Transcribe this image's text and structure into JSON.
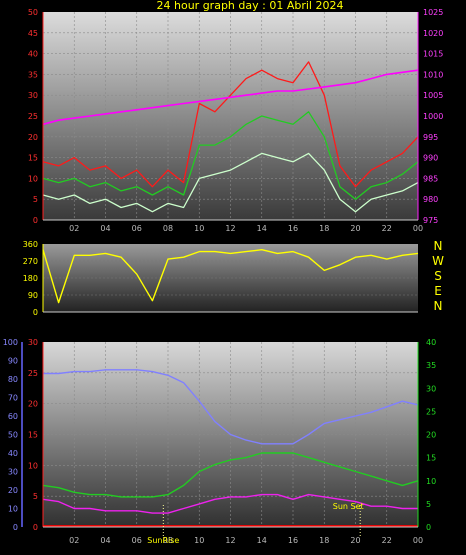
{
  "chart_data": [
    {
      "type": "line",
      "title": "24 hour graph day : 01 Abril 2024",
      "x_ticks": [
        "02",
        "04",
        "06",
        "08",
        "10",
        "12",
        "14",
        "16",
        "18",
        "20",
        "22",
        "00"
      ],
      "y_left_ticks": [
        "0",
        "5",
        "10",
        "15",
        "20",
        "25",
        "30",
        "35",
        "40",
        "45",
        "50"
      ],
      "y_right_ticks": [
        "975",
        "980",
        "985",
        "990",
        "995",
        "1000",
        "1005",
        "1010",
        "1015",
        "1020",
        "1025"
      ],
      "ylim_left": [
        0,
        50
      ],
      "ylim_right": [
        975,
        1025
      ],
      "hours": [
        0,
        1,
        2,
        3,
        4,
        5,
        6,
        7,
        8,
        9,
        10,
        11,
        12,
        13,
        14,
        15,
        16,
        17,
        18,
        19,
        20,
        21,
        22,
        23,
        24
      ],
      "series": [
        {
          "color": "#ff1a1a",
          "axis": "left",
          "values": [
            14,
            13,
            15,
            12,
            13,
            10,
            12,
            8,
            12,
            9,
            28,
            26,
            30,
            34,
            36,
            34,
            33,
            38,
            30,
            13,
            8,
            12,
            14,
            16,
            20
          ]
        },
        {
          "color": "#22cc22",
          "axis": "left",
          "values": [
            10,
            9,
            10,
            8,
            9,
            7,
            8,
            6,
            8,
            6,
            18,
            18,
            20,
            23,
            25,
            24,
            23,
            26,
            20,
            8,
            5,
            8,
            9,
            11,
            14
          ]
        },
        {
          "color": "#ccffcc",
          "axis": "left",
          "values": [
            6,
            5,
            6,
            4,
            5,
            3,
            4,
            2,
            4,
            3,
            10,
            11,
            12,
            14,
            16,
            15,
            14,
            16,
            12,
            5,
            2,
            5,
            6,
            7,
            9
          ]
        },
        {
          "color": "#ff00ff",
          "axis": "right",
          "values": [
            998,
            999,
            999.5,
            1000,
            1000.5,
            1001,
            1001.5,
            1002,
            1002.5,
            1003,
            1003.5,
            1004,
            1004.5,
            1005,
            1005.5,
            1006,
            1006,
            1006.5,
            1007,
            1007.5,
            1008,
            1009,
            1010,
            1010.5,
            1011
          ]
        }
      ]
    },
    {
      "type": "line",
      "y_ticks": [
        "0",
        "90",
        "180",
        "270",
        "360"
      ],
      "ylim": [
        0,
        360
      ],
      "compass_labels": [
        "N",
        "W",
        "S",
        "E",
        "N"
      ],
      "hours": [
        0,
        1,
        2,
        3,
        4,
        5,
        6,
        7,
        8,
        9,
        10,
        11,
        12,
        13,
        14,
        15,
        16,
        17,
        18,
        19,
        20,
        21,
        22,
        23,
        24
      ],
      "series": [
        {
          "color": "#ffff00",
          "values": [
            330,
            50,
            300,
            300,
            310,
            290,
            200,
            60,
            280,
            290,
            320,
            320,
            310,
            320,
            330,
            310,
            320,
            290,
            220,
            250,
            290,
            300,
            280,
            300,
            310
          ]
        }
      ]
    },
    {
      "type": "line",
      "x_ticks": [
        "02",
        "04",
        "06",
        "08",
        "10",
        "12",
        "14",
        "16",
        "18",
        "20",
        "22",
        "00"
      ],
      "y_blue_ticks": [
        "0",
        "10",
        "20",
        "30",
        "40",
        "50",
        "60",
        "70",
        "80",
        "90",
        "100"
      ],
      "y_red_ticks": [
        "0",
        "5",
        "10",
        "15",
        "20",
        "25",
        "30"
      ],
      "y_green_ticks": [
        "0",
        "5",
        "10",
        "15",
        "20",
        "25",
        "30",
        "35",
        "40"
      ],
      "ylim_blue": [
        0,
        100
      ],
      "ylim_red": [
        0,
        30
      ],
      "ylim_green": [
        0,
        40
      ],
      "events": [
        {
          "label": "SunRise",
          "hour": 7.7
        },
        {
          "label": "Sun Set",
          "hour": 20.3
        }
      ],
      "hours": [
        0,
        1,
        2,
        3,
        4,
        5,
        6,
        7,
        8,
        9,
        10,
        11,
        12,
        13,
        14,
        15,
        16,
        17,
        18,
        19,
        20,
        21,
        22,
        23,
        24
      ],
      "series": [
        {
          "color": "#8080ff",
          "axis": "blue",
          "values": [
            83,
            83,
            84,
            84,
            85,
            85,
            85,
            84,
            82,
            78,
            68,
            57,
            50,
            47,
            45,
            45,
            45,
            50,
            56,
            58,
            60,
            62,
            65,
            68,
            66
          ]
        },
        {
          "color": "#22cc22",
          "axis": "green",
          "values": [
            9,
            8.5,
            7.5,
            7,
            7,
            6.5,
            6.5,
            6.5,
            7,
            9,
            12,
            13.5,
            14.5,
            15,
            16,
            16,
            16,
            15,
            14,
            13,
            12,
            11,
            10,
            9,
            10
          ]
        },
        {
          "color": "#ee22ee",
          "axis": "green",
          "values": [
            6,
            5.5,
            4,
            4,
            3.5,
            3.5,
            3.5,
            3,
            3,
            4,
            5,
            6,
            6.5,
            6.5,
            7,
            7,
            6,
            7,
            6.5,
            6,
            5.5,
            4.5,
            4.5,
            4,
            4
          ]
        },
        {
          "color": "#ff0000",
          "axis": "green",
          "values": [
            0.2,
            0.2,
            0.2,
            0.2,
            0.2,
            0.2,
            0.2,
            0.2,
            0.2,
            0.2,
            0.2,
            0.2,
            0.2,
            0.2,
            0.2,
            0.2,
            0.2,
            0.2,
            0.2,
            0.2,
            0.2,
            0.2,
            0.2,
            0.2,
            0.2
          ]
        }
      ]
    }
  ]
}
